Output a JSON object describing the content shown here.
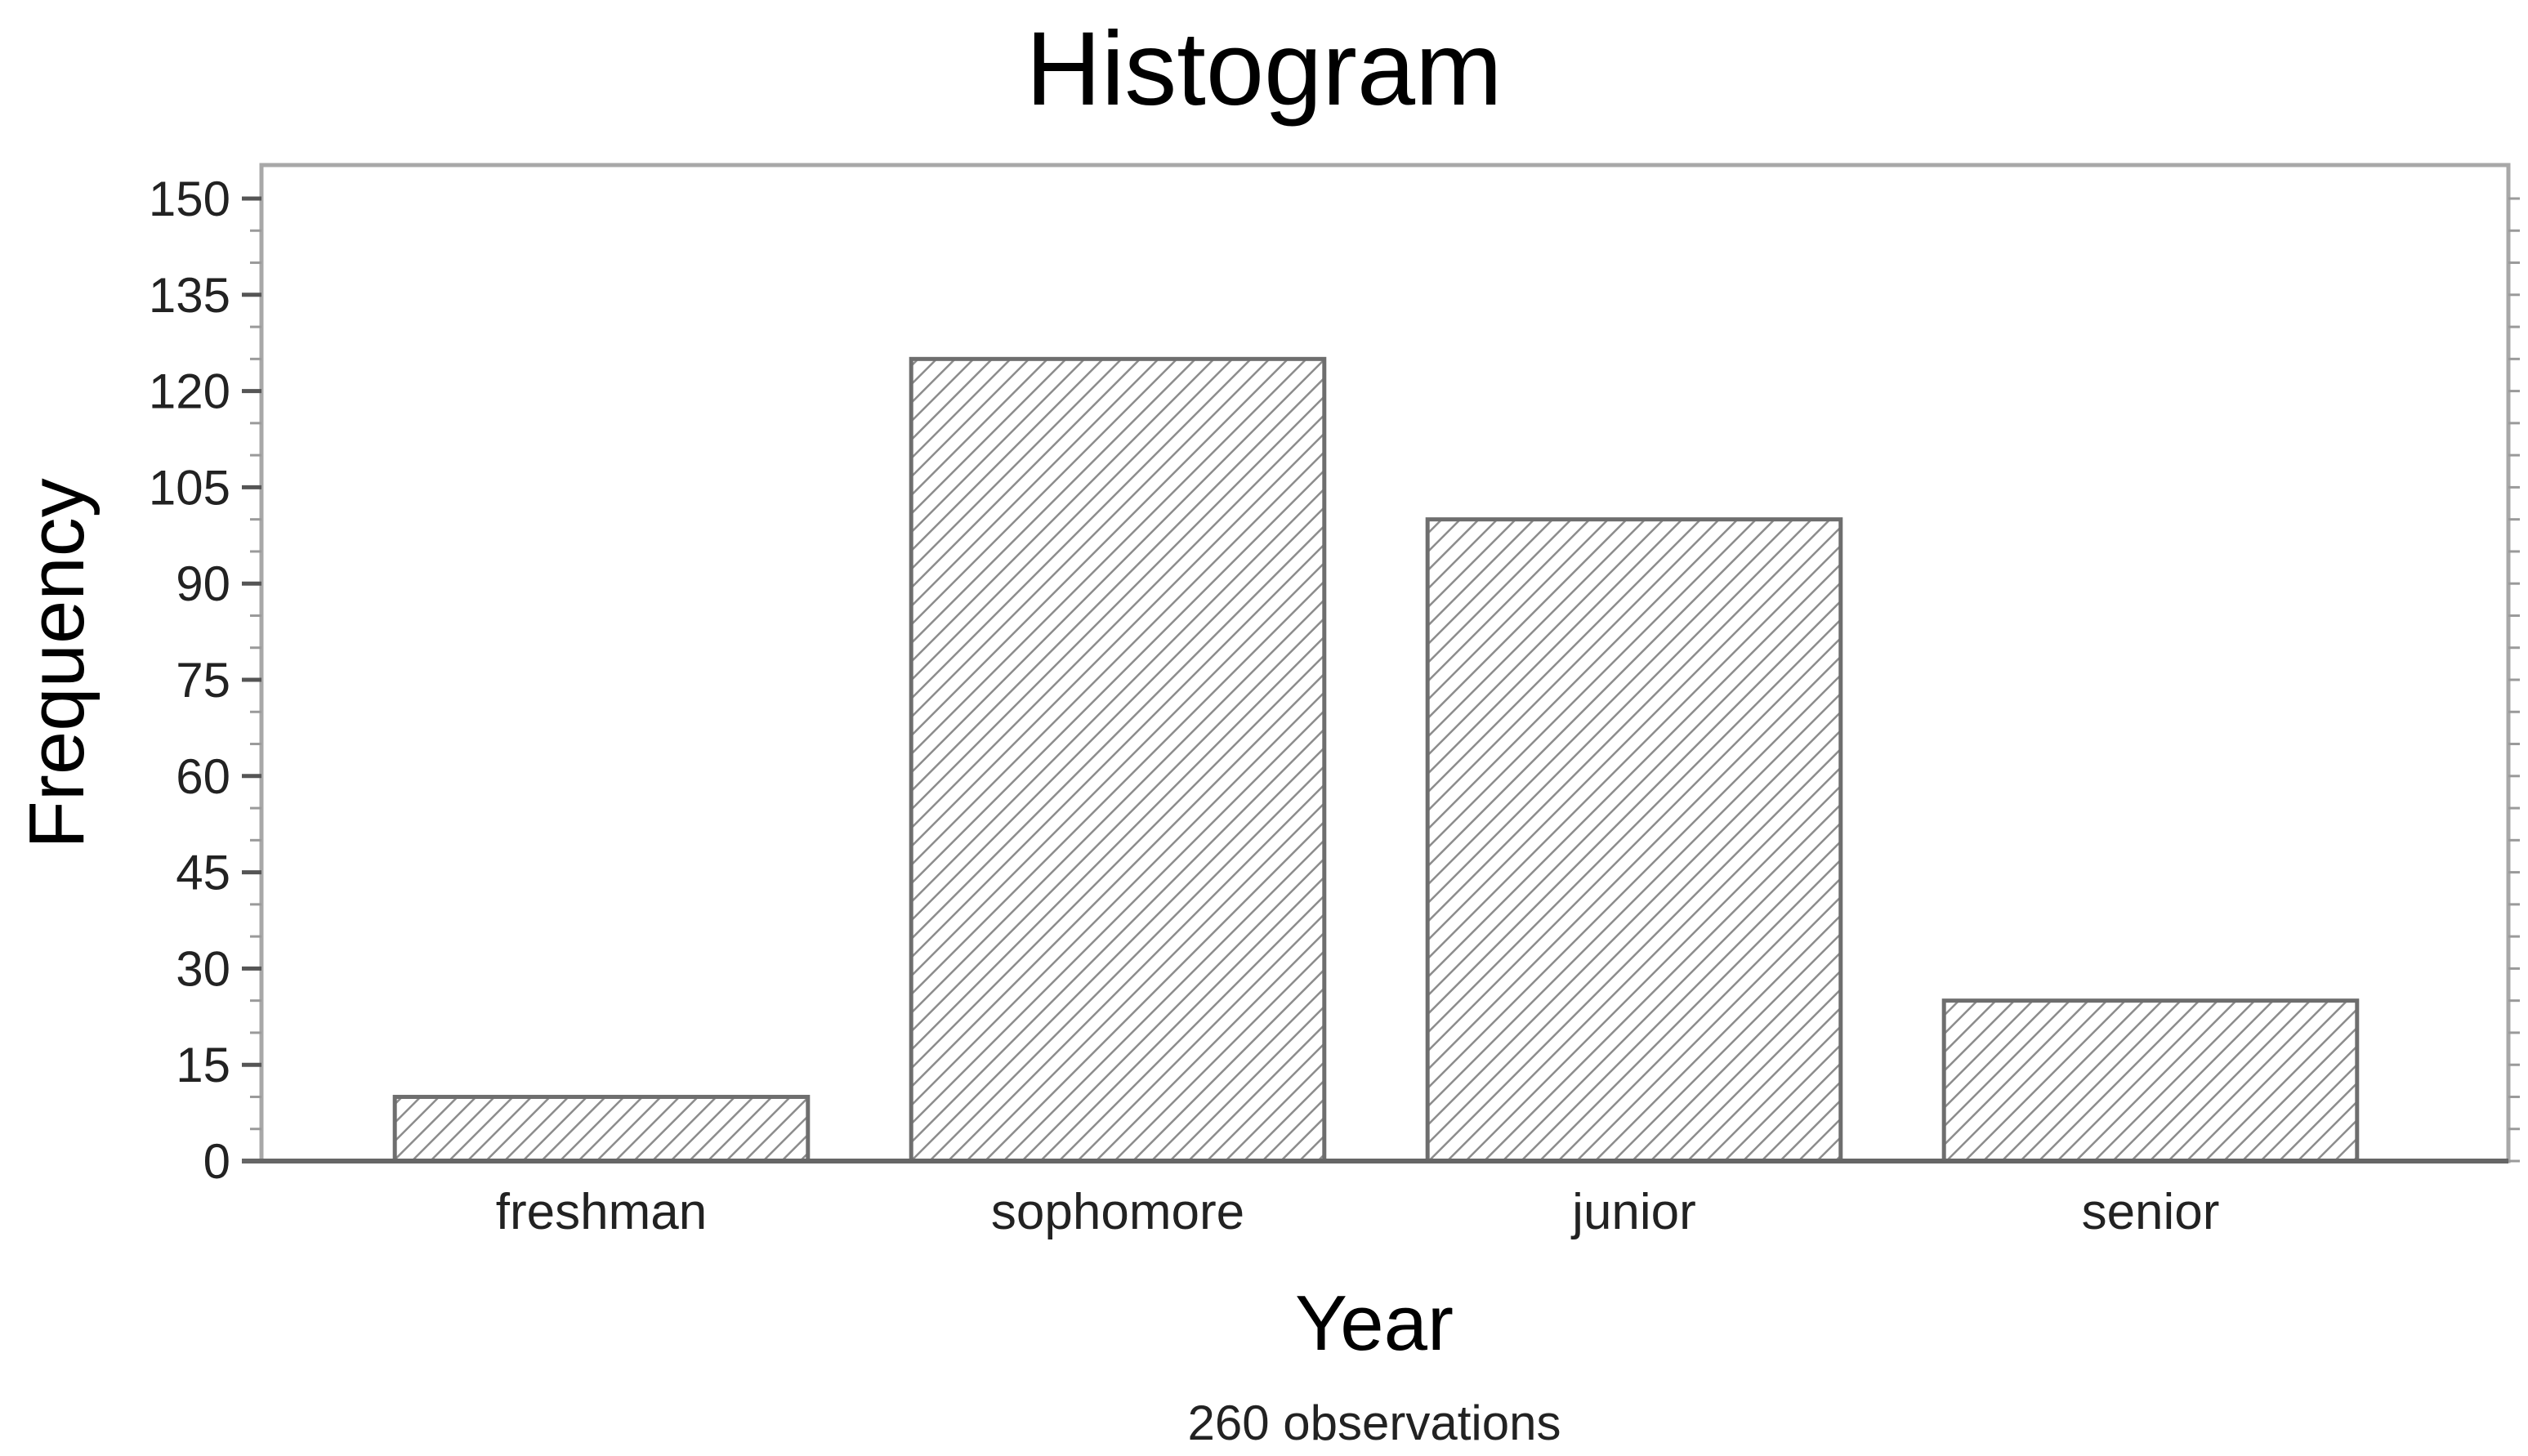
{
  "chart_data": {
    "type": "bar",
    "title": "Histogram",
    "xlabel": "Year",
    "ylabel": "Frequency",
    "note": "260 observations",
    "categories": [
      "freshman",
      "sophomore",
      "junior",
      "senior"
    ],
    "values": [
      10,
      125,
      100,
      25
    ],
    "ylim": [
      0,
      150
    ],
    "yticks": [
      0,
      15,
      30,
      45,
      60,
      75,
      90,
      105,
      120,
      135,
      150
    ],
    "grid": false,
    "legend": "none",
    "colors": {
      "bar_fill": "#ffffff",
      "bar_hatch": "#8c8c8c",
      "bar_edge": "#6e6e6e",
      "frame": "#a8a8a8",
      "baseline": "#666666",
      "text": "#000000"
    }
  }
}
